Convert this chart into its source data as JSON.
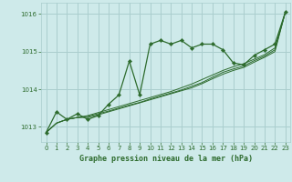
{
  "background_color": "#ceeaea",
  "grid_color": "#aacece",
  "line_color": "#2d6b2d",
  "marker_color": "#2d6b2d",
  "title": "Graphe pression niveau de la mer (hPa)",
  "xlim": [
    -0.5,
    23.5
  ],
  "ylim": [
    1012.6,
    1016.3
  ],
  "yticks": [
    1013,
    1014,
    1015,
    1016
  ],
  "xticks": [
    0,
    1,
    2,
    3,
    4,
    5,
    6,
    7,
    8,
    9,
    10,
    11,
    12,
    13,
    14,
    15,
    16,
    17,
    18,
    19,
    20,
    21,
    22,
    23
  ],
  "series_main": [
    1012.85,
    1013.4,
    1013.2,
    1013.35,
    1013.2,
    1013.3,
    1013.6,
    1013.85,
    1014.75,
    1013.85,
    1015.2,
    1015.3,
    1015.2,
    1015.3,
    1015.1,
    1015.2,
    1015.2,
    1015.05,
    1014.7,
    1014.65,
    1014.9,
    1015.05,
    1015.2,
    1016.05
  ],
  "series_lines": [
    [
      1012.85,
      1013.1,
      1013.2,
      1013.25,
      1013.25,
      1013.32,
      1013.4,
      1013.48,
      1013.56,
      1013.64,
      1013.72,
      1013.8,
      1013.88,
      1013.96,
      1014.04,
      1014.15,
      1014.28,
      1014.4,
      1014.5,
      1014.58,
      1014.72,
      1014.85,
      1015.0,
      1016.05
    ],
    [
      1012.85,
      1013.1,
      1013.2,
      1013.25,
      1013.28,
      1013.35,
      1013.42,
      1013.5,
      1013.58,
      1013.65,
      1013.74,
      1013.82,
      1013.9,
      1013.98,
      1014.08,
      1014.18,
      1014.32,
      1014.45,
      1014.54,
      1014.62,
      1014.76,
      1014.88,
      1015.05,
      1016.05
    ],
    [
      1012.85,
      1013.1,
      1013.2,
      1013.25,
      1013.3,
      1013.38,
      1013.46,
      1013.54,
      1013.62,
      1013.7,
      1013.78,
      1013.86,
      1013.94,
      1014.04,
      1014.14,
      1014.26,
      1014.38,
      1014.5,
      1014.6,
      1014.68,
      1014.8,
      1014.92,
      1015.1,
      1016.05
    ]
  ]
}
